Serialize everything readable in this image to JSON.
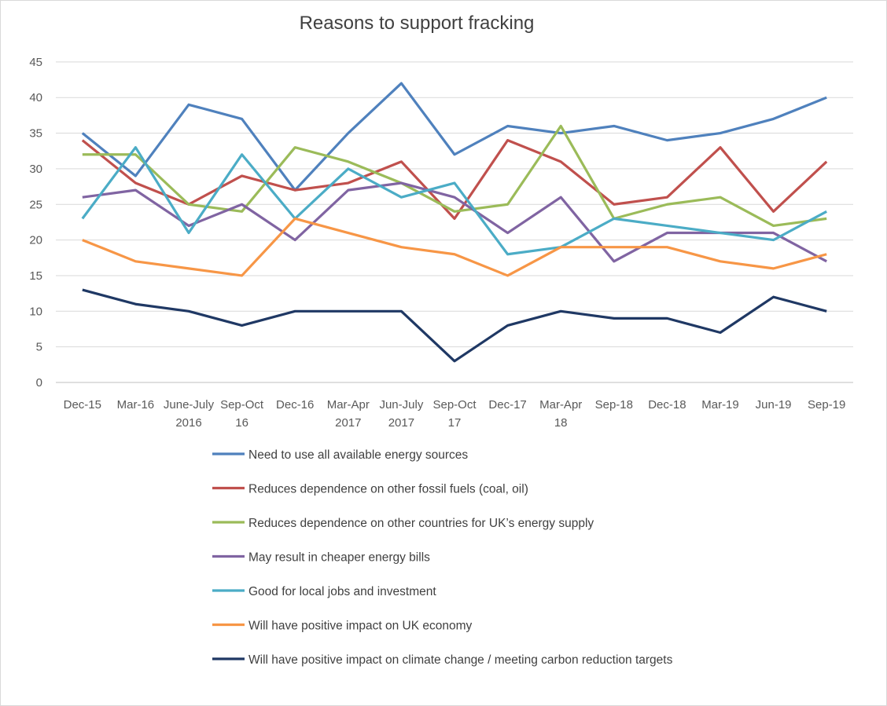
{
  "chart_data": {
    "type": "line",
    "title": "Reasons to support fracking",
    "xlabel": "",
    "ylabel": "",
    "ylim": [
      0,
      45
    ],
    "yticks": [
      0,
      5,
      10,
      15,
      20,
      25,
      30,
      35,
      40,
      45
    ],
    "grid": true,
    "legend_position": "bottom",
    "categories": [
      "Dec-15",
      "Mar-16",
      "June-July 2016",
      "Sep-Oct 16",
      "Dec-16",
      "Mar-Apr 2017",
      "Jun-July 2017",
      "Sep-Oct 17",
      "Dec-17",
      "Mar-Apr 18",
      "Sep-18",
      "Dec-18",
      "Mar-19",
      "Jun-19",
      "Sep-19"
    ],
    "series": [
      {
        "name": "Need to use all available energy sources",
        "color": "#4f81bd",
        "values": [
          35,
          29,
          39,
          37,
          27,
          35,
          42,
          32,
          36,
          35,
          36,
          34,
          35,
          37,
          40
        ]
      },
      {
        "name": "Reduces dependence on other fossil fuels (coal, oil)",
        "color": "#c0504d",
        "values": [
          34,
          28,
          25,
          29,
          27,
          28,
          31,
          23,
          34,
          31,
          25,
          26,
          33,
          24,
          31
        ]
      },
      {
        "name": "Reduces dependence on other countries for UK’s energy supply",
        "color": "#9bbb59",
        "values": [
          32,
          32,
          25,
          24,
          33,
          31,
          28,
          24,
          25,
          36,
          23,
          25,
          26,
          22,
          23
        ]
      },
      {
        "name": "May result in cheaper energy bills",
        "color": "#8064a2",
        "values": [
          26,
          27,
          22,
          25,
          20,
          27,
          28,
          26,
          21,
          26,
          17,
          21,
          21,
          21,
          17
        ]
      },
      {
        "name": "Good for local jobs and investment",
        "color": "#4bacc6",
        "values": [
          23,
          33,
          21,
          32,
          23,
          30,
          26,
          28,
          18,
          19,
          23,
          22,
          21,
          20,
          24
        ]
      },
      {
        "name": "Will have positive impact on UK economy",
        "color": "#f79646",
        "values": [
          20,
          17,
          16,
          15,
          23,
          21,
          19,
          18,
          15,
          19,
          19,
          19,
          17,
          16,
          18
        ]
      },
      {
        "name": "Will have positive impact on climate change / meeting carbon reduction targets",
        "color": "#1f3864",
        "values": [
          13,
          11,
          10,
          8,
          10,
          10,
          10,
          3,
          8,
          10,
          9,
          9,
          7,
          12,
          10
        ]
      }
    ]
  }
}
